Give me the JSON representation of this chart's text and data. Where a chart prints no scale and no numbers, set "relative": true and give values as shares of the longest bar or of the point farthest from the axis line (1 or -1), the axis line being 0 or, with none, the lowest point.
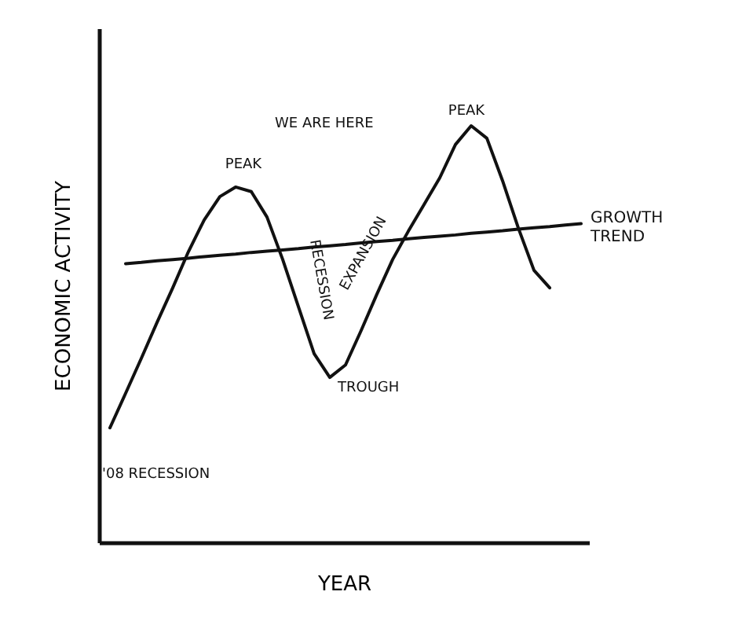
{
  "chart_data": {
    "type": "line",
    "relative": true,
    "xlabel": "YEAR",
    "ylabel": "ECONOMIC ACTIVITY",
    "categories": [
      null,
      null,
      null,
      null,
      null,
      null,
      null,
      null,
      null,
      null,
      null,
      null,
      null,
      null,
      null,
      null,
      null,
      null,
      null,
      null,
      null,
      null,
      null,
      null,
      null,
      null,
      null,
      null,
      null,
      null,
      null
    ],
    "grid": false,
    "marker": "none",
    "line_style": "solid",
    "series": [
      {
        "color": "#111111",
        "values": [
          0.275,
          0.358,
          0.442,
          0.528,
          0.611,
          0.698,
          0.774,
          0.83,
          0.853,
          0.842,
          0.781,
          0.679,
          0.566,
          0.453,
          0.396,
          0.426,
          0.509,
          0.596,
          0.679,
          0.747,
          0.811,
          0.875,
          0.955,
          1.0,
          0.97,
          0.868,
          0.755,
          0.653,
          0.611,
          null,
          null
        ]
      },
      {
        "name": "GROWTH TREND",
        "color": "#111111",
        "values": [
          null,
          0.669,
          0.672,
          0.676,
          0.679,
          0.682,
          0.686,
          0.689,
          0.692,
          0.696,
          0.699,
          0.702,
          0.705,
          0.709,
          0.712,
          0.715,
          0.719,
          0.722,
          0.725,
          0.729,
          0.732,
          0.735,
          0.738,
          0.742,
          0.745,
          0.748,
          0.752,
          0.755,
          0.758,
          0.762,
          0.765
        ]
      }
    ],
    "annotations": [
      "PEAK",
      "WE ARE HERE",
      "RECESSION",
      "EXPANSION",
      "TROUGH",
      "PEAK",
      "'08 RECESSION"
    ]
  }
}
